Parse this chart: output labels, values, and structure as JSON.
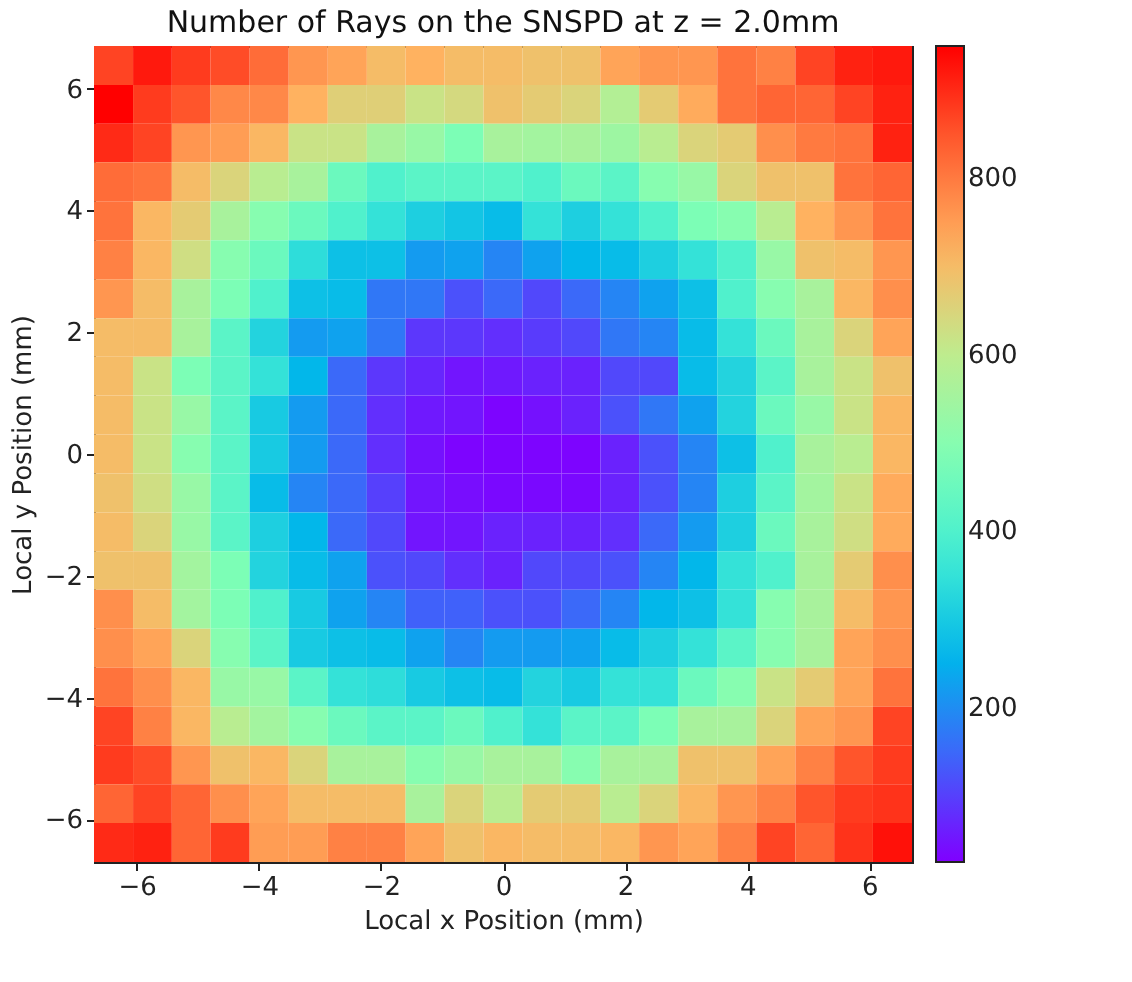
{
  "chart_data": {
    "type": "heatmap",
    "title": "Number of Rays on the SNSPD at z = 2.0mm",
    "xlabel": "Local x Position (mm)",
    "ylabel": "Local y Position (mm)",
    "x": [
      -6.38,
      -5.74,
      -5.11,
      -4.47,
      -3.83,
      -3.19,
      -2.55,
      -1.91,
      -1.28,
      -0.64,
      0,
      0.64,
      1.28,
      1.91,
      2.55,
      3.19,
      3.83,
      4.47,
      5.11,
      5.74,
      6.38
    ],
    "y": [
      6.38,
      5.74,
      5.11,
      4.47,
      3.83,
      3.19,
      2.55,
      1.91,
      1.28,
      0.64,
      0,
      -0.64,
      -1.28,
      -1.91,
      -2.55,
      -3.19,
      -3.83,
      -4.47,
      -5.11,
      -5.74,
      -6.38
    ],
    "xlim": [
      -6.7,
      6.7
    ],
    "ylim": [
      -6.7,
      6.7
    ],
    "xticks": [
      -6,
      -4,
      -2,
      0,
      2,
      4,
      6
    ],
    "yticks": [
      -6,
      -4,
      -2,
      0,
      2,
      4,
      6
    ],
    "clim": [
      25,
      950
    ],
    "cticks": [
      200,
      400,
      600,
      800
    ],
    "cells": [
      [
        870,
        920,
        880,
        860,
        820,
        760,
        740,
        700,
        720,
        700,
        700,
        690,
        690,
        740,
        760,
        760,
        810,
        790,
        870,
        910,
        920
      ],
      [
        950,
        880,
        850,
        780,
        780,
        720,
        660,
        660,
        620,
        640,
        690,
        670,
        650,
        580,
        670,
        730,
        810,
        830,
        830,
        870,
        910
      ],
      [
        900,
        870,
        760,
        750,
        710,
        620,
        620,
        560,
        530,
        480,
        560,
        550,
        560,
        540,
        590,
        650,
        670,
        770,
        800,
        810,
        910
      ],
      [
        820,
        810,
        700,
        650,
        590,
        560,
        450,
        400,
        420,
        420,
        420,
        400,
        450,
        420,
        500,
        530,
        650,
        690,
        690,
        810,
        830
      ],
      [
        810,
        710,
        670,
        560,
        500,
        450,
        400,
        350,
        310,
        290,
        270,
        350,
        310,
        350,
        400,
        480,
        500,
        590,
        720,
        760,
        810
      ],
      [
        790,
        710,
        630,
        500,
        450,
        340,
        280,
        280,
        220,
        230,
        190,
        230,
        260,
        270,
        310,
        350,
        400,
        530,
        690,
        700,
        760
      ],
      [
        760,
        700,
        560,
        480,
        400,
        280,
        270,
        170,
        170,
        120,
        150,
        110,
        150,
        190,
        230,
        280,
        400,
        500,
        560,
        710,
        770
      ],
      [
        700,
        700,
        560,
        420,
        320,
        220,
        230,
        170,
        90,
        90,
        80,
        95,
        110,
        170,
        190,
        270,
        350,
        450,
        560,
        650,
        740
      ],
      [
        700,
        620,
        480,
        420,
        350,
        260,
        150,
        90,
        70,
        50,
        55,
        65,
        65,
        110,
        110,
        270,
        320,
        420,
        560,
        620,
        690
      ],
      [
        700,
        620,
        530,
        420,
        300,
        220,
        150,
        80,
        55,
        50,
        30,
        45,
        65,
        120,
        170,
        230,
        320,
        450,
        530,
        620,
        710
      ],
      [
        700,
        620,
        500,
        420,
        300,
        220,
        150,
        80,
        45,
        30,
        30,
        30,
        30,
        65,
        120,
        190,
        280,
        400,
        560,
        590,
        710
      ],
      [
        690,
        630,
        530,
        420,
        270,
        190,
        150,
        100,
        50,
        40,
        35,
        35,
        35,
        65,
        120,
        190,
        310,
        420,
        550,
        620,
        730
      ],
      [
        700,
        650,
        530,
        420,
        310,
        260,
        150,
        110,
        50,
        50,
        65,
        65,
        65,
        80,
        150,
        220,
        310,
        450,
        560,
        630,
        730
      ],
      [
        690,
        690,
        550,
        480,
        320,
        270,
        230,
        120,
        110,
        80,
        65,
        110,
        110,
        120,
        190,
        260,
        350,
        400,
        560,
        670,
        770
      ],
      [
        770,
        700,
        550,
        480,
        400,
        300,
        230,
        190,
        140,
        140,
        120,
        120,
        150,
        190,
        260,
        280,
        350,
        500,
        560,
        700,
        760
      ],
      [
        770,
        740,
        650,
        500,
        420,
        300,
        280,
        270,
        230,
        190,
        220,
        220,
        230,
        270,
        310,
        350,
        420,
        500,
        560,
        740,
        770
      ],
      [
        810,
        770,
        710,
        530,
        530,
        420,
        350,
        340,
        300,
        280,
        270,
        320,
        300,
        350,
        350,
        450,
        500,
        620,
        670,
        740,
        810
      ],
      [
        870,
        790,
        710,
        590,
        550,
        500,
        450,
        420,
        420,
        450,
        400,
        350,
        420,
        420,
        480,
        560,
        560,
        650,
        740,
        760,
        870
      ],
      [
        880,
        860,
        760,
        690,
        710,
        650,
        560,
        560,
        500,
        530,
        560,
        560,
        500,
        560,
        560,
        690,
        690,
        740,
        790,
        850,
        880
      ],
      [
        830,
        870,
        830,
        770,
        740,
        700,
        700,
        700,
        560,
        650,
        590,
        670,
        670,
        590,
        650,
        710,
        760,
        790,
        850,
        880,
        890
      ],
      [
        900,
        910,
        830,
        880,
        750,
        750,
        790,
        790,
        740,
        690,
        710,
        700,
        700,
        710,
        760,
        740,
        790,
        870,
        830,
        890,
        930
      ]
    ]
  }
}
